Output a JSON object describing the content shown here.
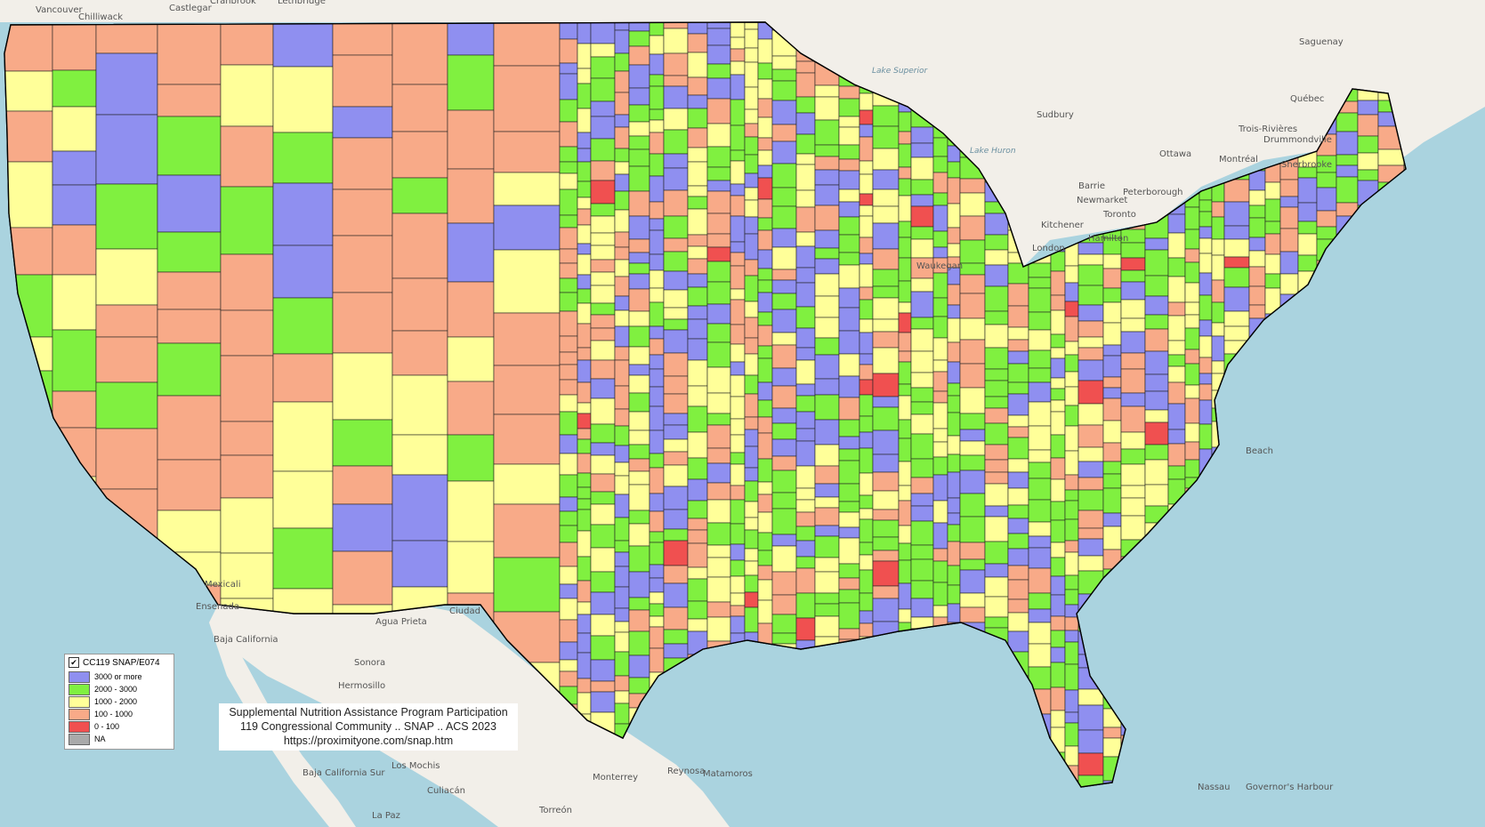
{
  "legend": {
    "title": "CC119 SNAP/E074",
    "checked": true,
    "items": [
      {
        "label": "3000 or more",
        "color": "#8f8ff0"
      },
      {
        "label": "2000 - 3000",
        "color": "#80f040"
      },
      {
        "label": "1000 - 2000",
        "color": "#ffff99"
      },
      {
        "label": "100 - 1000",
        "color": "#f8aa88"
      },
      {
        "label": "0 - 100",
        "color": "#f05050"
      },
      {
        "label": "NA",
        "color": "#aaaaaa"
      }
    ]
  },
  "caption": {
    "line1": "Supplemental Nutrition Assistance Program Participation",
    "line2": "119 Congressional Community .. SNAP .. ACS 2023",
    "line3": "https://proximityone.com/snap.htm"
  },
  "places": [
    "Vancouver",
    "Chilliwack",
    "Castlegar",
    "Cranbrook",
    "Lethbridge",
    "Lake Superior",
    "Saguenay",
    "Québec",
    "Trois-Rivières",
    "Drummondville",
    "Sherbrooke",
    "Montréal",
    "Ottawa",
    "Sudbury",
    "Barrie",
    "Peterborough",
    "Newmarket",
    "Toronto",
    "Kitchener",
    "Hamilton",
    "London",
    "Lake Huron",
    "Waukegan",
    "Mexicali",
    "Ensenada",
    "Agua Prieta",
    "Ciudad",
    "Hermosillo",
    "Sonora",
    "Baja California",
    "Baja California Sur",
    "Los Mochis",
    "Culiacán",
    "Torreón",
    "Monterrey",
    "Reynosa",
    "Matamoros",
    "Nassau",
    "Governor's Harbour",
    "Beach",
    "La Paz"
  ],
  "colors": {
    "ocean": "#aad3df",
    "land_foreign": "#f2efe9",
    "border": "#000000"
  }
}
